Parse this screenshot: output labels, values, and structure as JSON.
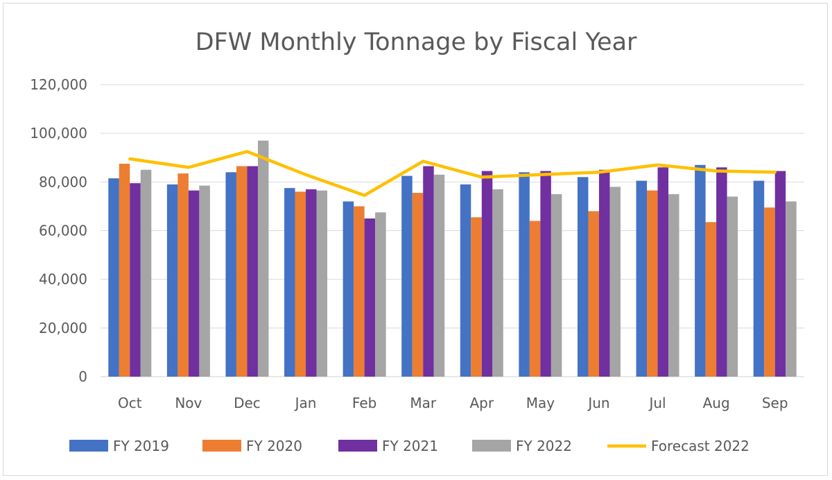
{
  "chart_data": {
    "type": "bar",
    "title": "DFW Monthly Tonnage by Fiscal Year",
    "xlabel": "",
    "ylabel": "",
    "ylim": [
      0,
      120000
    ],
    "yticks": [
      "0",
      "20,000",
      "40,000",
      "60,000",
      "80,000",
      "100,000",
      "120,000"
    ],
    "ytick_values": [
      0,
      20000,
      40000,
      60000,
      80000,
      100000,
      120000
    ],
    "grid": true,
    "legend_position": "bottom",
    "categories": [
      "Oct",
      "Nov",
      "Dec",
      "Jan",
      "Feb",
      "Mar",
      "Apr",
      "May",
      "Jun",
      "Jul",
      "Aug",
      "Sep"
    ],
    "series": [
      {
        "name": "FY 2019",
        "type": "bar",
        "color": "#4472c4",
        "values": [
          81500,
          79000,
          84000,
          77500,
          72000,
          82500,
          79000,
          84000,
          82000,
          80500,
          87000,
          80500
        ]
      },
      {
        "name": "FY 2020",
        "type": "bar",
        "color": "#ed7d31",
        "values": [
          87500,
          83500,
          86500,
          76000,
          70000,
          75500,
          65500,
          64000,
          68000,
          76500,
          63500,
          69500
        ]
      },
      {
        "name": "FY 2021",
        "type": "bar",
        "color": "#7030a0",
        "values": [
          79500,
          76500,
          86500,
          77000,
          65000,
          86500,
          84500,
          84500,
          85000,
          86000,
          86000,
          84500
        ]
      },
      {
        "name": "FY 2022",
        "type": "bar",
        "color": "#a5a5a5",
        "values": [
          85000,
          78500,
          97000,
          76500,
          67500,
          83000,
          77000,
          75000,
          78000,
          75000,
          74000,
          72000
        ]
      },
      {
        "name": "Forecast 2022",
        "type": "line",
        "color": "#ffc000",
        "values": [
          89500,
          86000,
          92500,
          83000,
          74500,
          88500,
          82000,
          83000,
          84000,
          87000,
          84500,
          84000
        ]
      }
    ]
  }
}
